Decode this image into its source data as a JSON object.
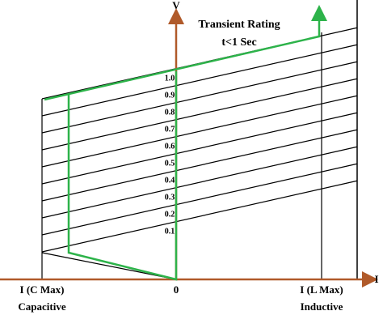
{
  "axes": {
    "v_label": "V",
    "i_label": "I"
  },
  "annotation": {
    "line1": "Transient Rating",
    "line2": "t<1 Sec"
  },
  "voltage_labels": [
    "1.0",
    "0.9",
    "0.8",
    "0.7",
    "0.6",
    "0.5",
    "0.4",
    "0.3",
    "0.2",
    "0.1"
  ],
  "x_labels": [
    {
      "top": "I (C Max)",
      "bottom": "Capacitive"
    },
    {
      "top": "0"
    },
    {
      "top": "I (L Max)",
      "bottom": "Inductive"
    }
  ]
}
